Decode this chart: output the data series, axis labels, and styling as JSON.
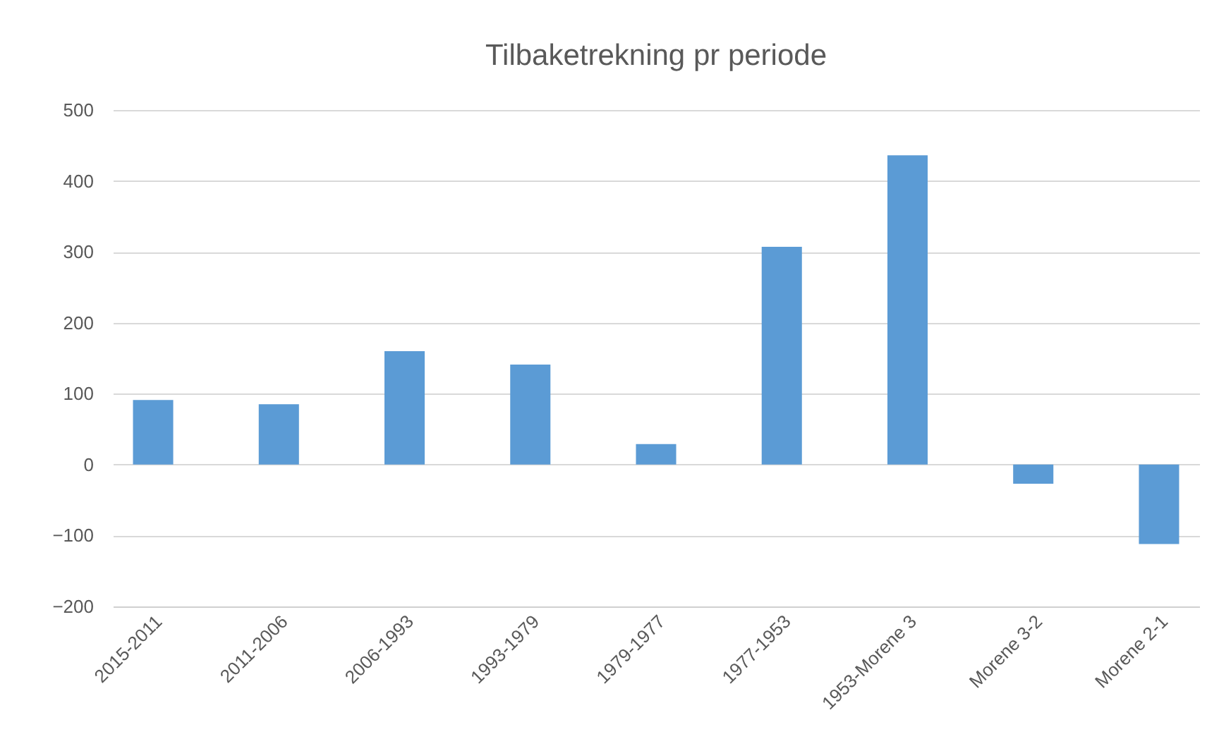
{
  "chart_data": {
    "type": "bar",
    "title": "Tilbaketrekning pr periode",
    "categories": [
      "2015-2011",
      "2011-2006",
      "2006-1993",
      "1993-1979",
      "1979-1977",
      "1977-1953",
      "1953-Morene 3",
      "Morene 3-2",
      "Morene 2-1"
    ],
    "values": [
      91,
      85,
      160,
      141,
      29,
      307,
      436,
      -27,
      -112
    ],
    "color": "#5b9bd5",
    "ylim": [
      -200,
      500
    ],
    "yticks": [
      -200,
      -100,
      0,
      100,
      200,
      300,
      400,
      500
    ],
    "grid": "y"
  }
}
